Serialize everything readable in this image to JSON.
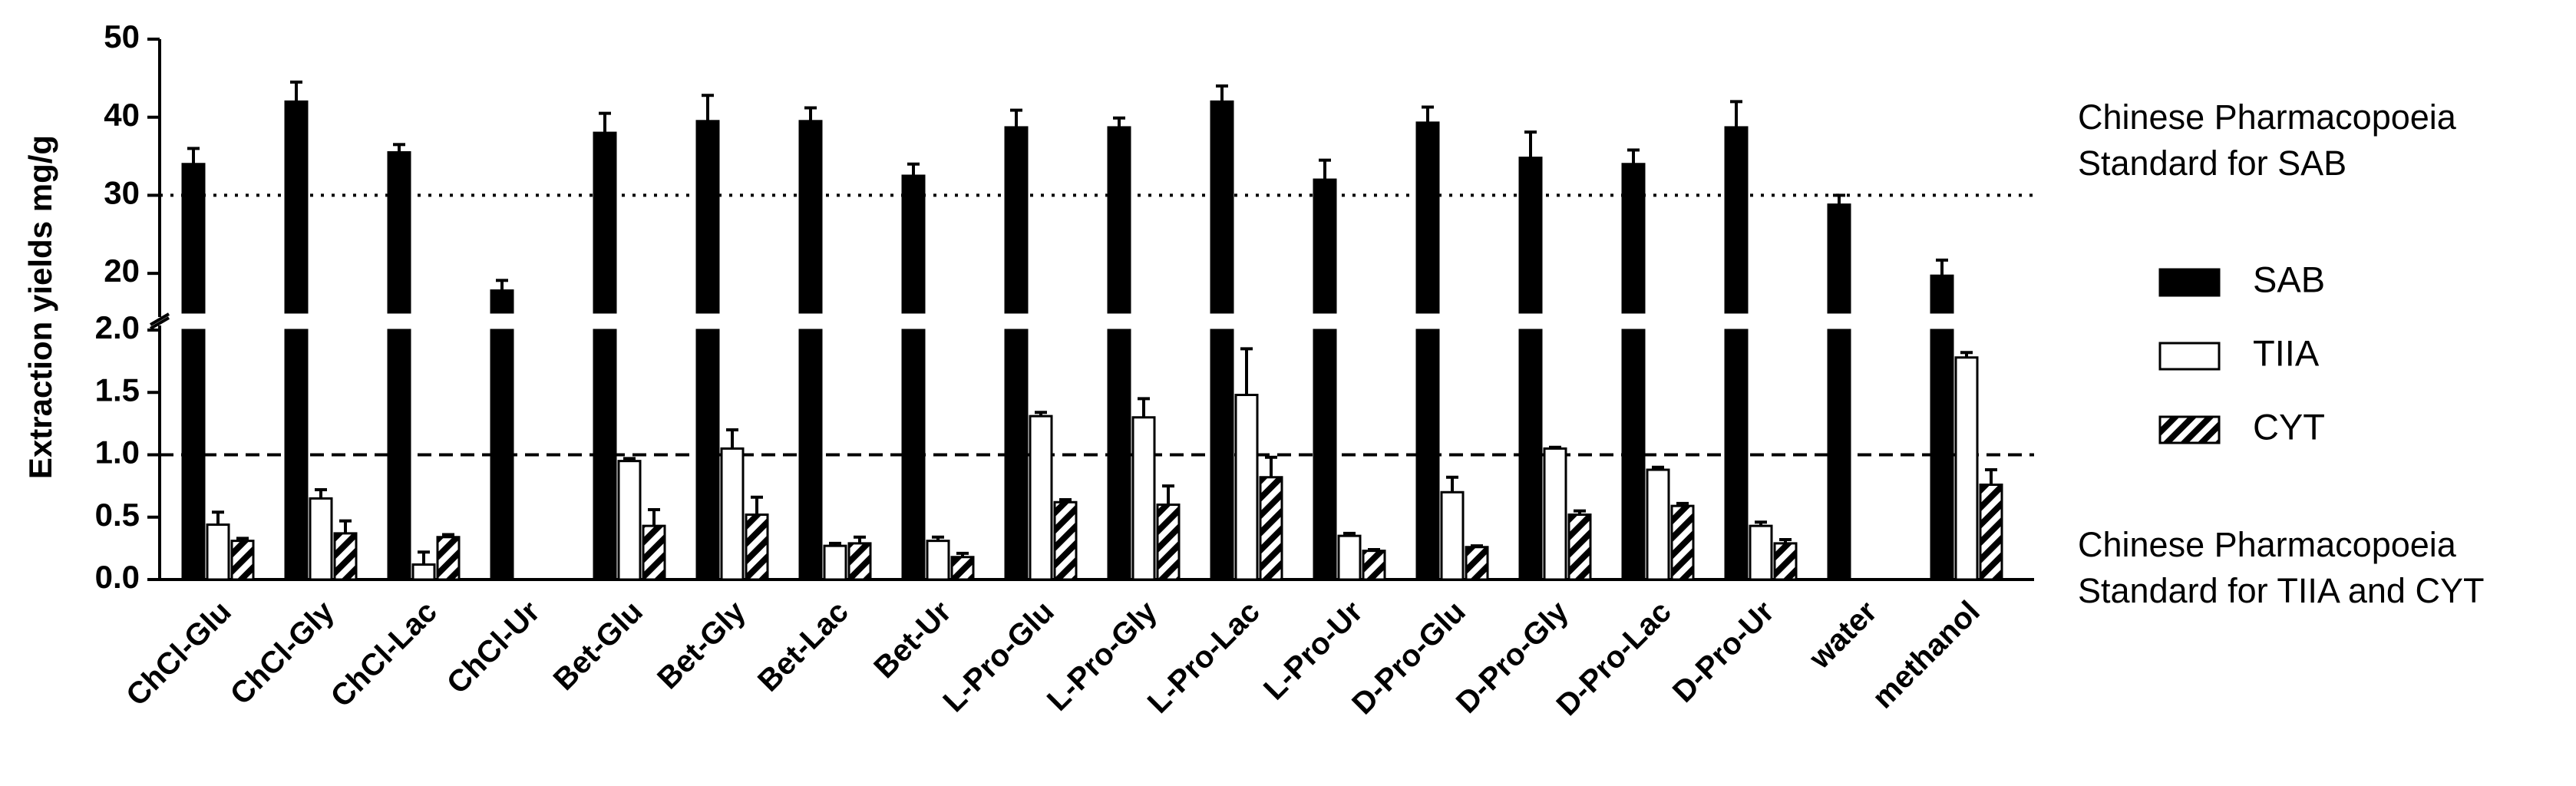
{
  "chart_data": {
    "type": "bar",
    "ylabel": "Extraction yields mg/g",
    "broken_axis": true,
    "segments": [
      {
        "ylim": [
          0,
          2
        ],
        "yticks": [
          {
            "value": 0,
            "label": "0.0"
          },
          {
            "value": 0.5,
            "label": "0.5"
          },
          {
            "value": 1,
            "label": "1.0"
          },
          {
            "value": 1.5,
            "label": "1.5"
          },
          {
            "value": 2,
            "label": "2.0"
          }
        ]
      },
      {
        "ylim": [
          15,
          50
        ],
        "yticks": [
          20,
          30,
          40,
          50
        ]
      }
    ],
    "categories": [
      "ChCl-Glu",
      "ChCl-Gly",
      "ChCl-Lac",
      "ChCl-Ur",
      "Bet-Glu",
      "Bet-Gly",
      "Bet-Lac",
      "Bet-Ur",
      "L-Pro-Glu",
      "L-Pro-Gly",
      "L-Pro-Lac",
      "L-Pro-Ur",
      "D-Pro-Glu",
      "D-Pro-Gly",
      "D-Pro-Lac",
      "D-Pro-Ur",
      "water",
      "methanol"
    ],
    "series": [
      {
        "name": "SAB",
        "color": "#000000",
        "pattern": "solid",
        "values": [
          34,
          42,
          35.5,
          17.8,
          38,
          39.5,
          39.5,
          32.5,
          38.7,
          38.7,
          42,
          32,
          39.3,
          34.8,
          34,
          38.7,
          28.8,
          19.7
        ],
        "errors": [
          2,
          2.5,
          1,
          1.3,
          2.5,
          3.3,
          1.7,
          1.5,
          2.2,
          1.2,
          2,
          2.5,
          2,
          3.3,
          1.8,
          3.3,
          1.2,
          2
        ]
      },
      {
        "name": "TIIA",
        "color": "#ffffff",
        "pattern": "solid",
        "values": [
          0.44,
          0.65,
          0.12,
          null,
          0.95,
          1.05,
          0.27,
          0.31,
          1.31,
          1.3,
          1.48,
          0.35,
          0.7,
          1.05,
          0.88,
          0.43,
          null,
          1.78
        ],
        "errors": [
          0.1,
          0.07,
          0.1,
          null,
          0.02,
          0.15,
          0.02,
          0.03,
          0.03,
          0.15,
          0.37,
          0.02,
          0.12,
          0.01,
          0.02,
          0.03,
          null,
          0.04
        ]
      },
      {
        "name": "CYT",
        "color": "#000000",
        "pattern": "hatch",
        "values": [
          0.31,
          0.37,
          0.34,
          null,
          0.43,
          0.52,
          0.29,
          0.18,
          0.62,
          0.6,
          0.82,
          0.23,
          0.26,
          0.52,
          0.59,
          0.29,
          null,
          0.76
        ],
        "errors": [
          0.02,
          0.1,
          0.02,
          null,
          0.13,
          0.14,
          0.05,
          0.03,
          0.02,
          0.15,
          0.16,
          0.01,
          0.01,
          0.03,
          0.02,
          0.03,
          null,
          0.12
        ]
      }
    ],
    "reference_lines": [
      {
        "value": 30,
        "style": "dotted",
        "label": [
          "Chinese Pharmacopoeia",
          "Standard for SAB"
        ]
      },
      {
        "value": 1,
        "style": "dashed",
        "label": [
          "Chinese Pharmacopoeia",
          "Standard for TIIA and CYT"
        ]
      }
    ],
    "legend": "right"
  }
}
